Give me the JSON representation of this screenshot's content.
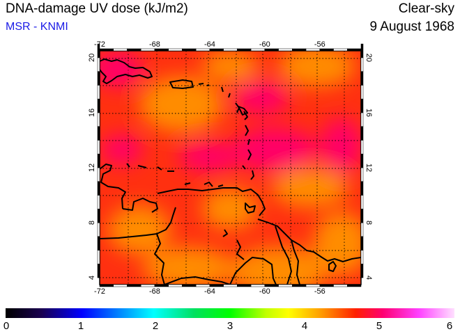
{
  "header": {
    "title": "DNA-damage UV dose (kJ/m2)",
    "source": "MSR - KNMI",
    "condition": "Clear-sky",
    "date": "9 August 1968"
  },
  "map": {
    "lon_range": [
      -72,
      -53
    ],
    "lat_range": [
      3.5,
      20.5
    ],
    "lon_ticks": [
      "-72",
      "-68",
      "-64",
      "-60",
      "-56"
    ],
    "lat_ticks": [
      "4",
      "8",
      "12",
      "16",
      "20"
    ],
    "gridlines": "dotted",
    "colors": {
      "low": "#ff8c00",
      "mid": "#ff3010",
      "high": "#ff0066",
      "coast": "#000000"
    }
  },
  "colorbar": {
    "labels": [
      "0",
      "1",
      "2",
      "3",
      "4",
      "5",
      "6"
    ],
    "range": [
      0,
      6
    ]
  }
}
